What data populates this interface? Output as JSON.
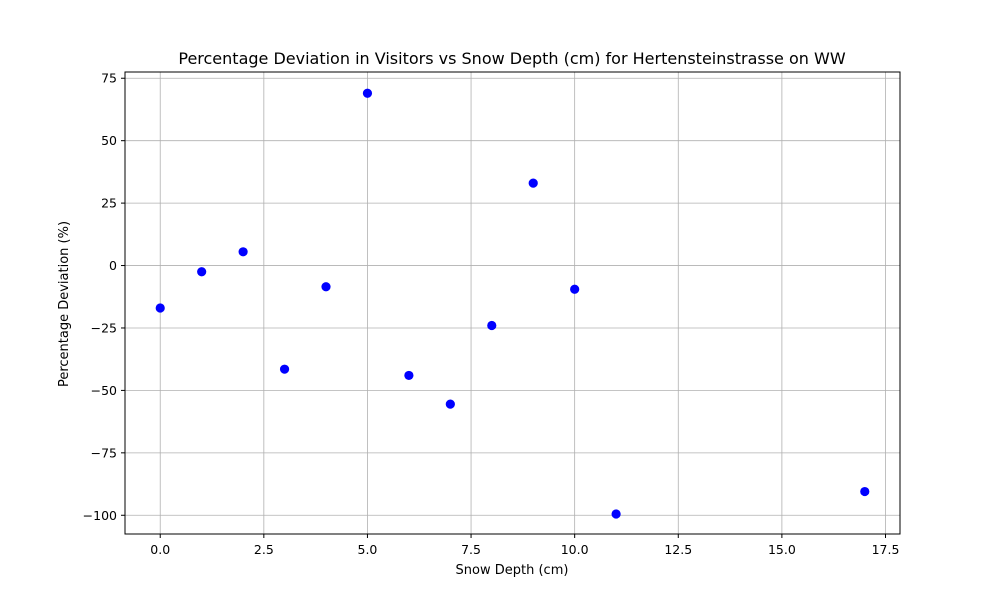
{
  "chart_data": {
    "type": "scatter",
    "title": "Percentage Deviation in Visitors vs Snow Depth (cm) for Hertensteinstrasse on WW",
    "xlabel": "Snow Depth (cm)",
    "ylabel": "Percentage Deviation (%)",
    "xlim": [
      -0.85,
      17.85
    ],
    "ylim": [
      -107.5,
      77.5
    ],
    "x_ticks": [
      0.0,
      2.5,
      5.0,
      7.5,
      10.0,
      12.5,
      15.0,
      17.5
    ],
    "x_tick_labels": [
      "0.0",
      "2.5",
      "5.0",
      "7.5",
      "10.0",
      "12.5",
      "15.0",
      "17.5"
    ],
    "y_ticks": [
      75,
      50,
      25,
      0,
      -25,
      -50,
      -75,
      -100
    ],
    "y_tick_labels": [
      "75",
      "50",
      "25",
      "0",
      "−25",
      "−50",
      "−75",
      "−100"
    ],
    "grid": true,
    "marker_color": "#0000ff",
    "points": [
      {
        "x": 0,
        "y": -17
      },
      {
        "x": 1,
        "y": -2.5
      },
      {
        "x": 2,
        "y": 5.5
      },
      {
        "x": 3,
        "y": -41.5
      },
      {
        "x": 4,
        "y": -8.5
      },
      {
        "x": 5,
        "y": 69
      },
      {
        "x": 6,
        "y": -44
      },
      {
        "x": 7,
        "y": -55.5
      },
      {
        "x": 8,
        "y": -24
      },
      {
        "x": 9,
        "y": 33
      },
      {
        "x": 10,
        "y": -9.5
      },
      {
        "x": 11,
        "y": -99.5
      },
      {
        "x": 17,
        "y": -90.5
      }
    ]
  }
}
